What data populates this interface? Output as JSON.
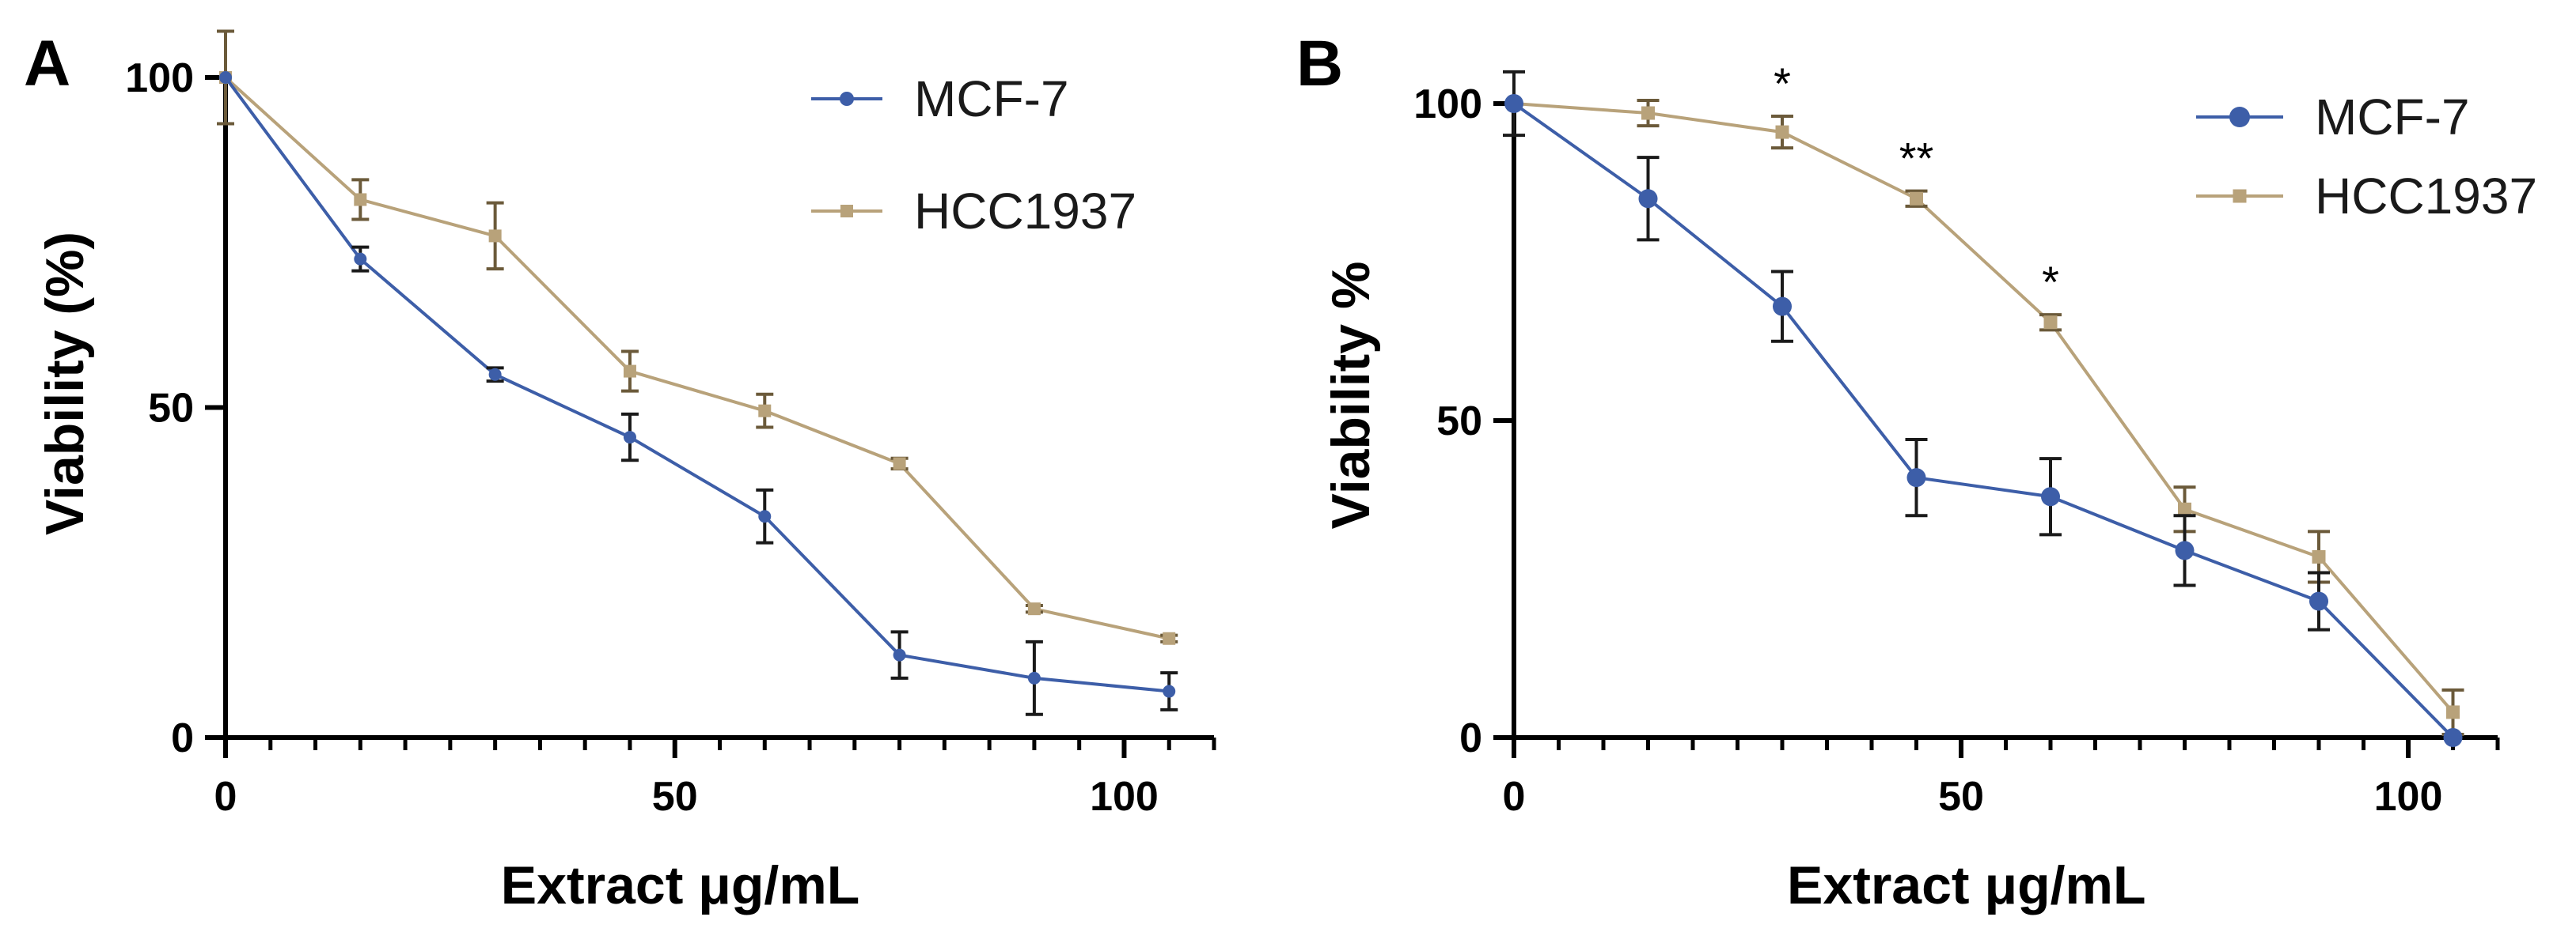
{
  "chart_data": [
    {
      "panel_label": "A",
      "type": "line",
      "xlabel": "Extract μg/mL",
      "ylabel": "Viability (%)",
      "xlim": [
        0,
        110
      ],
      "ylim": [
        0,
        100
      ],
      "x_ticks": [
        0,
        50,
        100
      ],
      "y_ticks": [
        0,
        50,
        100
      ],
      "x_minor_step": 5,
      "legend_position": "top-right",
      "series": [
        {
          "name": "MCF-7",
          "color": "#3d5ea8",
          "marker": "circle",
          "x": [
            0,
            15,
            30,
            45,
            60,
            75,
            90,
            105
          ],
          "values": [
            100,
            72.5,
            55,
            45.5,
            33.5,
            12.5,
            9,
            7
          ],
          "errors": [
            0,
            1.8,
            1,
            3.5,
            4,
            3.5,
            5.5,
            2.8
          ]
        },
        {
          "name": "HCC1937",
          "color": "#b8a27a",
          "marker": "square",
          "x": [
            0,
            15,
            30,
            45,
            60,
            75,
            90,
            105
          ],
          "values": [
            100,
            81.5,
            76,
            55.5,
            49.5,
            41.5,
            19.5,
            15
          ],
          "errors": [
            7,
            3,
            5,
            3,
            2.5,
            0.8,
            0.5,
            0.5
          ]
        }
      ],
      "annotations": []
    },
    {
      "panel_label": "B",
      "type": "line",
      "xlabel": "Extract μg/mL",
      "ylabel": "Viability %",
      "xlim": [
        0,
        110
      ],
      "ylim": [
        0,
        100
      ],
      "x_ticks": [
        0,
        50,
        100
      ],
      "y_ticks": [
        0,
        50,
        100
      ],
      "x_minor_step": 5,
      "legend_position": "top-right",
      "series": [
        {
          "name": "MCF-7",
          "color": "#3d5ea8",
          "marker": "circle",
          "x": [
            0,
            15,
            30,
            45,
            60,
            75,
            90,
            105
          ],
          "values": [
            100,
            85,
            68,
            41,
            38,
            29.5,
            21.5,
            0
          ],
          "errors": [
            5,
            6.5,
            5.5,
            6,
            6,
            5.5,
            4.5,
            0
          ]
        },
        {
          "name": "HCC1937",
          "color": "#b8a27a",
          "marker": "square",
          "x": [
            0,
            15,
            30,
            45,
            60,
            75,
            90,
            105
          ],
          "values": [
            100,
            98.5,
            95.5,
            85,
            65.5,
            36,
            28.5,
            4
          ],
          "errors": [
            0,
            2,
            2.5,
            1.2,
            1.2,
            3.5,
            4,
            3.5
          ]
        }
      ],
      "annotations": [
        {
          "text": "*",
          "x": 30
        },
        {
          "text": "**",
          "x": 45
        },
        {
          "text": "*",
          "x": 60
        }
      ]
    }
  ]
}
